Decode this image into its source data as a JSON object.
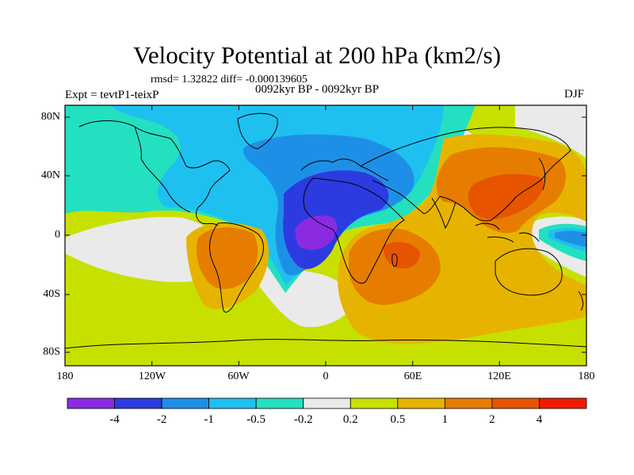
{
  "title": "Velocity Potential at 200 hPa (km2/s)",
  "stats_line": "rmsd= 1.32822 diff= -0.000139605",
  "experiment": "Expt = tevtP1-teixP",
  "period": "0092kyr BP - 0092kyr BP",
  "season": "DJF",
  "map": {
    "lat_labels": [
      "80N",
      "40N",
      "0",
      "40S",
      "80S"
    ],
    "lon_labels": [
      "180",
      "120W",
      "60W",
      "0",
      "60E",
      "120E",
      "180"
    ]
  },
  "colorbar": {
    "labels": [
      "-4",
      "-2",
      "-1",
      "-0.5",
      "-0.2",
      "0.2",
      "0.5",
      "1",
      "2",
      "4"
    ],
    "colors": [
      "#8a2be2",
      "#2b3be0",
      "#1e8fe6",
      "#1ec0f0",
      "#23e0c0",
      "#eaeaea",
      "#c8e000",
      "#e6b400",
      "#e67d00",
      "#e65400",
      "#f01a00"
    ]
  }
}
